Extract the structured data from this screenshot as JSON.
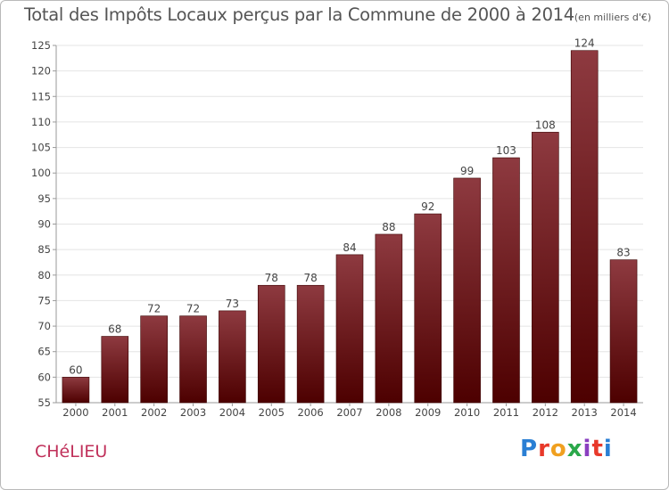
{
  "header": {
    "title": "Total des Impôts Locaux perçus par la Commune de 2000 à 2014",
    "unit": "(en milliers d'€)"
  },
  "footer": {
    "commune": "CHéLIEU",
    "logo_text": "Proxiti",
    "logo_colors": [
      "#2a7fd4",
      "#e8392a",
      "#f0a020",
      "#2aa84a",
      "#8a3fc0",
      "#e8392a",
      "#2a7fd4"
    ]
  },
  "colors": {
    "bar_top": "#8e3a40",
    "bar_bottom": "#4d0000",
    "axis": "#999999",
    "grid": "#e4e4e4",
    "text": "#444444"
  },
  "chart_data": {
    "type": "bar",
    "title": "Total des Impôts Locaux perçus par la Commune de 2000 à 2014",
    "xlabel": "",
    "ylabel": "",
    "categories": [
      "2000",
      "2001",
      "2002",
      "2003",
      "2004",
      "2005",
      "2006",
      "2007",
      "2008",
      "2009",
      "2010",
      "2011",
      "2012",
      "2013",
      "2014"
    ],
    "values": [
      60,
      68,
      72,
      72,
      73,
      78,
      78,
      84,
      88,
      92,
      99,
      103,
      108,
      124,
      83
    ],
    "ylim": [
      55,
      125
    ],
    "yticks": [
      55,
      60,
      65,
      70,
      75,
      80,
      85,
      90,
      95,
      100,
      105,
      110,
      115,
      120,
      125
    ],
    "grid": true,
    "legend": "none"
  }
}
